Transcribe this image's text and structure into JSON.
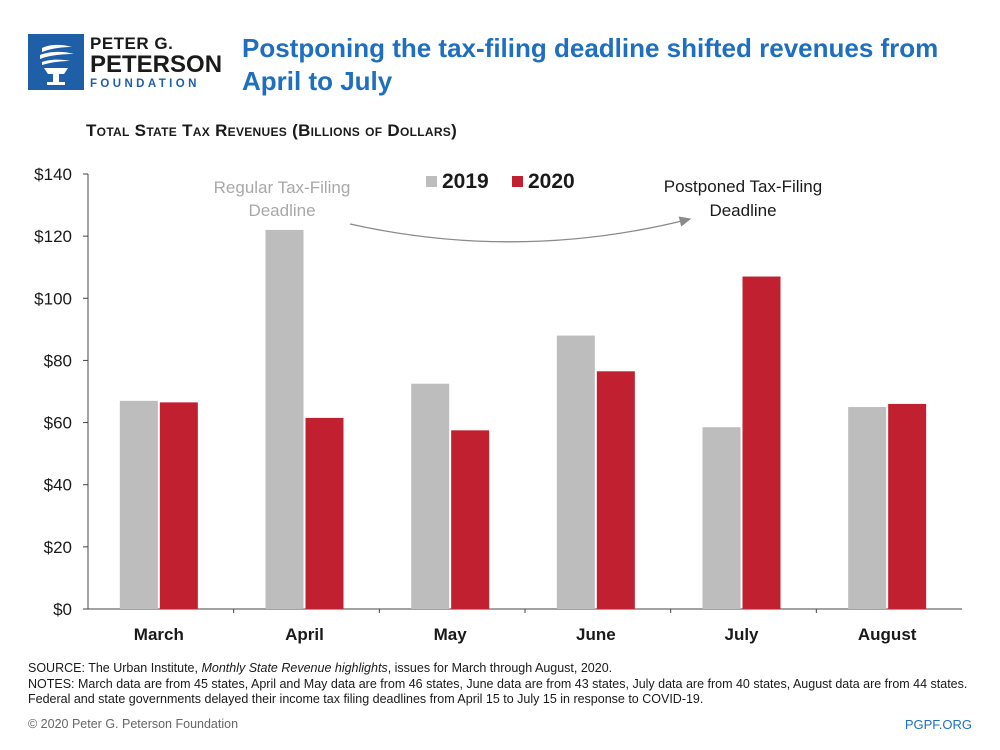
{
  "logo": {
    "line1": "PETER G.",
    "line2": "PETERSON",
    "line3": "FOUNDATION"
  },
  "headline": "Postponing the tax-filing deadline shifted revenues from April to July",
  "chart_data": {
    "type": "bar",
    "title": "Total State Tax Revenues (Billions of Dollars)",
    "xlabel": "",
    "ylabel": "",
    "categories": [
      "March",
      "April",
      "May",
      "June",
      "July",
      "August"
    ],
    "series": [
      {
        "name": "2019",
        "color": "#bdbdbd",
        "values": [
          67,
          122,
          72.5,
          88,
          58.5,
          65
        ]
      },
      {
        "name": "2020",
        "color": "#c0202f",
        "values": [
          66.5,
          61.5,
          57.5,
          76.5,
          107,
          66
        ]
      }
    ],
    "ylim": [
      0,
      140
    ],
    "yticks": [
      0,
      20,
      40,
      60,
      80,
      100,
      120,
      140
    ],
    "ytick_labels": [
      "$0",
      "$20",
      "$40",
      "$60",
      "$80",
      "$100",
      "$120",
      "$140"
    ],
    "legend": [
      "2019",
      "2020"
    ],
    "legend_position": "top-center",
    "annotations": [
      {
        "text_lines": [
          "Regular Tax-Filing",
          "Deadline"
        ],
        "color": "#a8a8a8"
      },
      {
        "text_lines": [
          "Postponed Tax-Filing",
          "Deadline"
        ],
        "color": "#1a1a1a"
      }
    ],
    "grid": false
  },
  "footer": {
    "source_prefix": "SOURCE: The Urban Institute, ",
    "source_italic": "Monthly State Revenue highlights",
    "source_suffix": ", issues for March through August, 2020.",
    "notes": "NOTES: March data are from 45 states, April and May data are from 46 states, June data are from 43 states, July data are from 40 states, August data are from 44 states. Federal and state governments delayed their income tax filing deadlines from April 15 to July 15 in response to COVID-19.",
    "copyright": "© 2020 Peter G. Peterson Foundation",
    "site": "PGPF.ORG"
  },
  "colors": {
    "accent": "#1f6fc0",
    "logo_blue": "#1f5fa8",
    "bar_2019": "#bdbdbd",
    "bar_2020": "#c0202f"
  }
}
